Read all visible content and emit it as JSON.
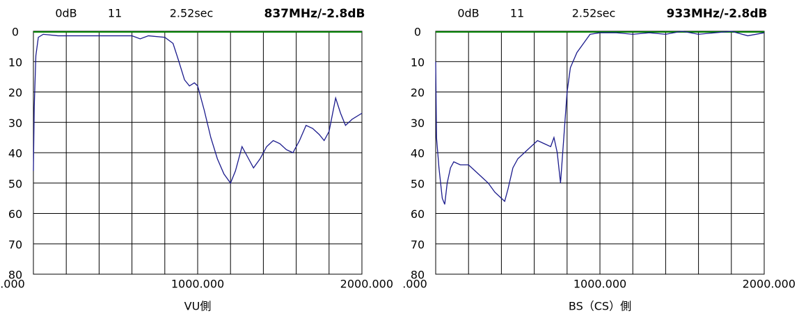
{
  "chart_data": [
    {
      "type": "line",
      "header": [
        "0dB",
        "11",
        "2.52sec"
      ],
      "readout": "837MHz/-2.8dB",
      "caption": "VU側",
      "xlim": [
        0,
        2000
      ],
      "xticks": [
        {
          "value": 0,
          "label": ".000"
        },
        {
          "value": 1000,
          "label": "1000.000"
        },
        {
          "value": 2000,
          "label": "2000.000"
        }
      ],
      "xgrid": [
        0,
        200,
        400,
        600,
        800,
        1000,
        1200,
        1400,
        1600,
        1800,
        2000
      ],
      "ylim": [
        0,
        80
      ],
      "y_inverted": true,
      "yticks": [
        0,
        10,
        20,
        30,
        40,
        50,
        60,
        70,
        80
      ],
      "grid": true,
      "reference_line": {
        "value": 0,
        "color": "#008000"
      },
      "x": [
        0,
        5,
        15,
        30,
        60,
        150,
        300,
        500,
        600,
        650,
        700,
        800,
        850,
        880,
        920,
        950,
        980,
        1000,
        1040,
        1080,
        1120,
        1160,
        1200,
        1230,
        1270,
        1310,
        1340,
        1380,
        1420,
        1460,
        1500,
        1540,
        1580,
        1620,
        1660,
        1700,
        1740,
        1770,
        1800,
        1840,
        1870,
        1900,
        1940,
        2000
      ],
      "series": [
        {
          "color": "#1a1a8c",
          "values": [
            46,
            25,
            8,
            2,
            1,
            1.5,
            1.5,
            1.5,
            1.5,
            2.5,
            1.5,
            2,
            4,
            9,
            16,
            18,
            17,
            18,
            26,
            35,
            42,
            47,
            50,
            46,
            38,
            42,
            45,
            42,
            38,
            36,
            37,
            39,
            40,
            36,
            31,
            32,
            34,
            36,
            33,
            22,
            27,
            31,
            29,
            27
          ]
        }
      ]
    },
    {
      "type": "line",
      "header": [
        "0dB",
        "11",
        "2.52sec"
      ],
      "readout": "933MHz/-2.8dB",
      "caption": "BS（CS）側",
      "xlim": [
        0,
        2000
      ],
      "xticks": [
        {
          "value": 0,
          "label": ".000"
        },
        {
          "value": 1000,
          "label": "1000.000"
        },
        {
          "value": 2000,
          "label": "2000.000"
        }
      ],
      "xgrid": [
        0,
        200,
        400,
        600,
        800,
        1000,
        1200,
        1400,
        1600,
        1800,
        2000
      ],
      "ylim": [
        0,
        80
      ],
      "y_inverted": true,
      "yticks": [
        0,
        10,
        20,
        30,
        40,
        50,
        60,
        70,
        80
      ],
      "grid": true,
      "reference_line": {
        "value": 0,
        "color": "#008000"
      },
      "x": [
        0,
        5,
        20,
        40,
        55,
        70,
        90,
        110,
        150,
        200,
        240,
        280,
        320,
        360,
        400,
        420,
        440,
        470,
        500,
        540,
        580,
        620,
        660,
        700,
        720,
        740,
        760,
        780,
        800,
        820,
        860,
        900,
        940,
        1000,
        1100,
        1200,
        1300,
        1400,
        1500,
        1600,
        1700,
        1800,
        1900,
        2000
      ],
      "series": [
        {
          "color": "#1a1a8c",
          "values": [
            10,
            35,
            45,
            55,
            57,
            50,
            45,
            43,
            44,
            44,
            46,
            48,
            50,
            53,
            55,
            56,
            52,
            45,
            42,
            40,
            38,
            36,
            37,
            38,
            35,
            40,
            50,
            35,
            20,
            12,
            7,
            4,
            1,
            0.5,
            0.5,
            1,
            0.5,
            1,
            0,
            1,
            0.5,
            0,
            1.5,
            0.5
          ]
        }
      ]
    }
  ]
}
